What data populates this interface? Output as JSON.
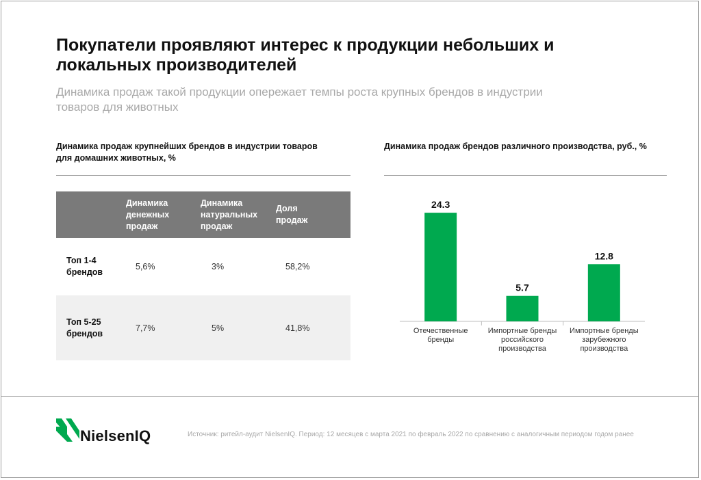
{
  "title": "Покупатели проявляют интерес к продукции небольших и локальных производителей",
  "subtitle": "Динамика продаж такой продукции опережает темпы роста крупных брендов в индустрии товаров для животных",
  "left_panel": {
    "title": "Динамика продаж крупнейших брендов в индустрии товаров для домашних животных, %",
    "table": {
      "headers": [
        "Динамика денежных продаж",
        "Динамика натуральных продаж",
        "Доля продаж"
      ],
      "rows": [
        {
          "label": "Топ 1-4 брендов",
          "values": [
            "5,6%",
            "3%",
            "58,2%"
          ]
        },
        {
          "label": "Топ 5-25 брендов",
          "values": [
            "7,7%",
            "5%",
            "41,8%"
          ]
        }
      ]
    }
  },
  "right_panel": {
    "title": "Динамика продаж брендов различного производства, руб., %"
  },
  "chart_data": {
    "type": "bar",
    "title": "Динамика продаж брендов различного производства, руб., %",
    "categories": [
      "Отечественные бренды",
      "Импортные бренды российского производства",
      "Импортные бренды зарубежного производства"
    ],
    "category_lines": [
      [
        "Отечественные",
        "бренды"
      ],
      [
        "Импортные бренды",
        "российского",
        "производства"
      ],
      [
        "Импортные бренды",
        "зарубежного",
        "производства"
      ]
    ],
    "values": [
      24.3,
      5.7,
      12.8
    ],
    "value_labels": [
      "24.3",
      "5.7",
      "12.8"
    ],
    "xlabel": "",
    "ylabel": "",
    "ylim": [
      0,
      26
    ],
    "grid": false,
    "bar_color": "#00a94f"
  },
  "footer": {
    "logo_text": "NielsenIQ",
    "source": "Источник: ритейл-аудит NielsenIQ. Период: 12 месяцев с марта 2021 по февраль 2022 по сравнению с аналогичным периодом годом ранее"
  },
  "colors": {
    "accent": "#00a94f",
    "table_header": "#7a7a7a",
    "row_shade": "#f0f0f0",
    "muted_text": "#a8a8a8"
  }
}
